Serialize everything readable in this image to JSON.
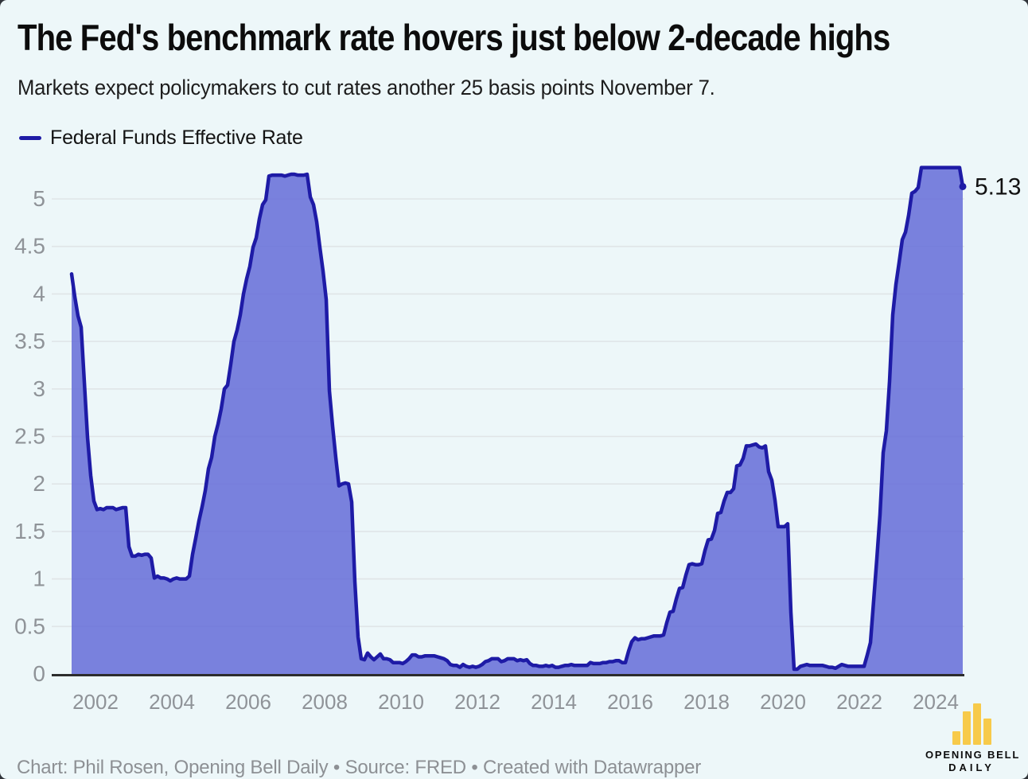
{
  "chart_data": {
    "type": "area",
    "title": "The Fed's benchmark rate hovers just below 2-decade highs",
    "subtitle": "Markets expect policymakers to cut rates another 25 basis points November 7.",
    "legend_position": "top-left",
    "grid": true,
    "xlabel": "",
    "ylabel": "",
    "xlim": [
      2000.85,
      2024.85
    ],
    "ylim": [
      0,
      5.5
    ],
    "x_ticks": [
      2002,
      2004,
      2006,
      2008,
      2010,
      2012,
      2014,
      2016,
      2018,
      2020,
      2022,
      2024
    ],
    "y_ticks": [
      0,
      0.5,
      1,
      1.5,
      2,
      2.5,
      3,
      3.5,
      4,
      4.5,
      5
    ],
    "y_tick_labels": [
      "0",
      "0.5",
      "1",
      "1.5",
      "2",
      "2.5",
      "3",
      "3.5",
      "4",
      "4.5",
      "5"
    ],
    "end_label": "5.13",
    "colors": {
      "line": "#1e1ba6",
      "fill": "#646cd8",
      "grid": "#e0e5e7",
      "axis": "#2d2d2d",
      "tick_label": "#8f9398",
      "end_label": "#111111"
    },
    "series": [
      {
        "name": "Federal Funds Effective Rate",
        "start_year": 2001,
        "start_month": 5,
        "frequency": "monthly",
        "values": [
          4.21,
          3.97,
          3.77,
          3.65,
          3.07,
          2.49,
          2.09,
          1.82,
          1.73,
          1.74,
          1.73,
          1.75,
          1.75,
          1.75,
          1.73,
          1.74,
          1.75,
          1.75,
          1.34,
          1.24,
          1.24,
          1.26,
          1.25,
          1.26,
          1.26,
          1.22,
          1.01,
          1.03,
          1.01,
          1.01,
          1.0,
          0.98,
          1.0,
          1.01,
          1.0,
          1.0,
          1.0,
          1.03,
          1.26,
          1.43,
          1.61,
          1.76,
          1.93,
          2.16,
          2.28,
          2.5,
          2.63,
          2.79,
          3.0,
          3.04,
          3.26,
          3.5,
          3.62,
          3.78,
          4.0,
          4.16,
          4.29,
          4.49,
          4.59,
          4.79,
          4.94,
          4.99,
          5.24,
          5.25,
          5.25,
          5.25,
          5.25,
          5.24,
          5.25,
          5.26,
          5.26,
          5.25,
          5.25,
          5.25,
          5.26,
          5.02,
          4.94,
          4.76,
          4.49,
          4.24,
          3.94,
          2.98,
          2.61,
          2.28,
          1.98,
          2.0,
          2.01,
          2.0,
          1.81,
          0.97,
          0.39,
          0.16,
          0.15,
          0.22,
          0.18,
          0.15,
          0.18,
          0.21,
          0.16,
          0.16,
          0.15,
          0.12,
          0.12,
          0.12,
          0.11,
          0.13,
          0.16,
          0.2,
          0.2,
          0.18,
          0.18,
          0.19,
          0.19,
          0.19,
          0.19,
          0.18,
          0.17,
          0.16,
          0.14,
          0.1,
          0.09,
          0.09,
          0.07,
          0.1,
          0.08,
          0.07,
          0.08,
          0.07,
          0.08,
          0.1,
          0.13,
          0.14,
          0.16,
          0.16,
          0.16,
          0.13,
          0.14,
          0.16,
          0.16,
          0.16,
          0.14,
          0.15,
          0.14,
          0.15,
          0.11,
          0.09,
          0.09,
          0.08,
          0.08,
          0.09,
          0.08,
          0.09,
          0.07,
          0.07,
          0.08,
          0.09,
          0.09,
          0.1,
          0.09,
          0.09,
          0.09,
          0.09,
          0.09,
          0.12,
          0.11,
          0.11,
          0.11,
          0.12,
          0.12,
          0.13,
          0.13,
          0.14,
          0.14,
          0.12,
          0.12,
          0.24,
          0.34,
          0.38,
          0.36,
          0.37,
          0.37,
          0.38,
          0.39,
          0.4,
          0.4,
          0.4,
          0.41,
          0.54,
          0.65,
          0.66,
          0.79,
          0.9,
          0.91,
          1.04,
          1.15,
          1.16,
          1.15,
          1.15,
          1.16,
          1.3,
          1.41,
          1.42,
          1.51,
          1.69,
          1.7,
          1.82,
          1.91,
          1.91,
          1.95,
          2.19,
          2.2,
          2.27,
          2.4,
          2.4,
          2.41,
          2.42,
          2.39,
          2.38,
          2.4,
          2.13,
          2.04,
          1.83,
          1.55,
          1.55,
          1.55,
          1.58,
          0.65,
          0.05,
          0.05,
          0.08,
          0.09,
          0.1,
          0.09,
          0.09,
          0.09,
          0.09,
          0.09,
          0.08,
          0.07,
          0.07,
          0.06,
          0.08,
          0.1,
          0.09,
          0.08,
          0.08,
          0.08,
          0.08,
          0.08,
          0.08,
          0.2,
          0.33,
          0.77,
          1.21,
          1.68,
          2.33,
          2.56,
          3.08,
          3.78,
          4.1,
          4.33,
          4.57,
          4.65,
          4.83,
          5.06,
          5.08,
          5.12,
          5.33,
          5.33,
          5.33,
          5.33,
          5.33,
          5.33,
          5.33,
          5.33,
          5.33,
          5.33,
          5.33,
          5.33,
          5.33,
          5.13
        ]
      }
    ]
  },
  "footer": {
    "text": "Chart: Phil Rosen, Opening Bell Daily • Source: FRED • Created with Datawrapper"
  },
  "logo": {
    "line1": "OPENING BELL",
    "line2": "DAILY",
    "bar_color": "#f7ca4a"
  }
}
